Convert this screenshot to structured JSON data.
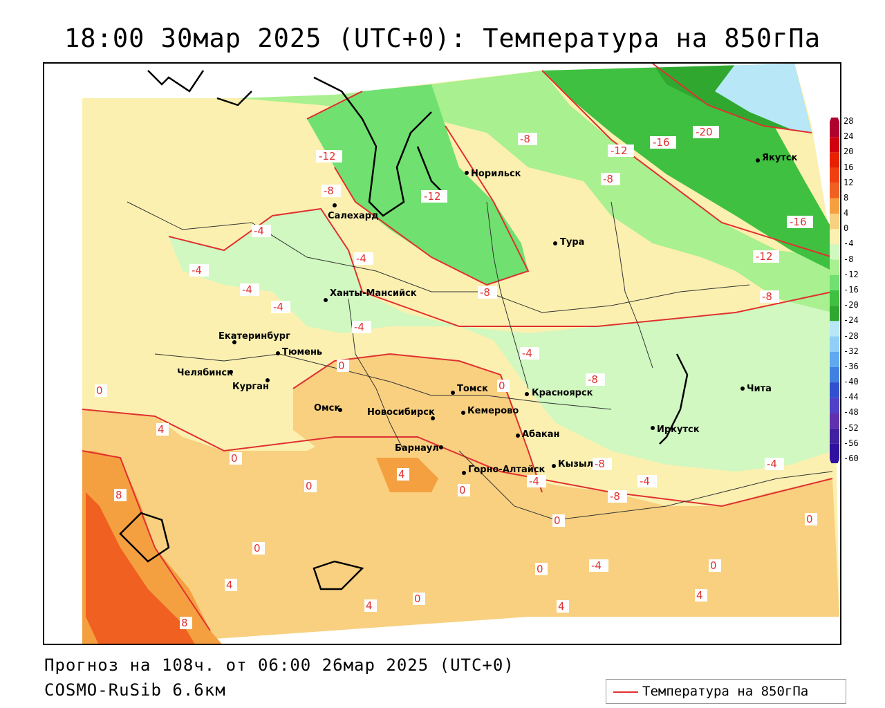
{
  "title": "18:00 30мар 2025 (UTC+0): Температура на 850гПа",
  "footer": {
    "forecast": "Прогноз на 108ч. от 06:00 26мар 2025 (UTC+0)",
    "model": "COSMO-RuSib 6.6км"
  },
  "legend": {
    "label": "Температура на 850гПа",
    "color": "#e03030"
  },
  "colorbar": {
    "ticks": [
      "28",
      "24",
      "20",
      "16",
      "12",
      "8",
      "4",
      "0",
      "-4",
      "-8",
      "-12",
      "-16",
      "-20",
      "-24",
      "-28",
      "-32",
      "-36",
      "-40",
      "-44",
      "-48",
      "-52",
      "-56",
      "-60"
    ],
    "colors": [
      "#b00030",
      "#d00010",
      "#e82000",
      "#f04010",
      "#f06020",
      "#f5a040",
      "#f8d080",
      "#fbf0b0",
      "#d0f8c0",
      "#a8f090",
      "#70e070",
      "#40c040",
      "#30a830",
      "#b8e8f8",
      "#90d0f8",
      "#60a8f0",
      "#4080e0",
      "#3050d0",
      "#5040c8",
      "#6030b0",
      "#4020a0",
      "#3010a0"
    ]
  },
  "cities": [
    {
      "name": "Норильск"
    },
    {
      "name": "Якутск"
    },
    {
      "name": "Салехард"
    },
    {
      "name": "Тура"
    },
    {
      "name": "Ханты-Мансийск"
    },
    {
      "name": "Екатеринбург"
    },
    {
      "name": "Тюмень"
    },
    {
      "name": "Челябинск"
    },
    {
      "name": "Курган"
    },
    {
      "name": "Омск"
    },
    {
      "name": "Новосибирск"
    },
    {
      "name": "Томск"
    },
    {
      "name": "Кемерово"
    },
    {
      "name": "Красноярск"
    },
    {
      "name": "Абакан"
    },
    {
      "name": "Барнаул"
    },
    {
      "name": "Горно-Алтайск"
    },
    {
      "name": "Кызыл"
    },
    {
      "name": "Иркутск"
    },
    {
      "name": "Чита"
    }
  ],
  "isotherm_labels": [
    "-20",
    "-16",
    "-16",
    "-12",
    "-12",
    "-12",
    "-12",
    "-8",
    "-8",
    "-8",
    "-8",
    "-8",
    "-8",
    "-8",
    "-8",
    "-4",
    "-4",
    "-4",
    "-4",
    "-4",
    "-4",
    "-4",
    "-4",
    "-4",
    "-4",
    "-4",
    "0",
    "0",
    "0",
    "0",
    "0",
    "0",
    "0",
    "0",
    "0",
    "0",
    "0",
    "0",
    "4",
    "4",
    "4",
    "4",
    "4",
    "4",
    "8",
    "8"
  ]
}
